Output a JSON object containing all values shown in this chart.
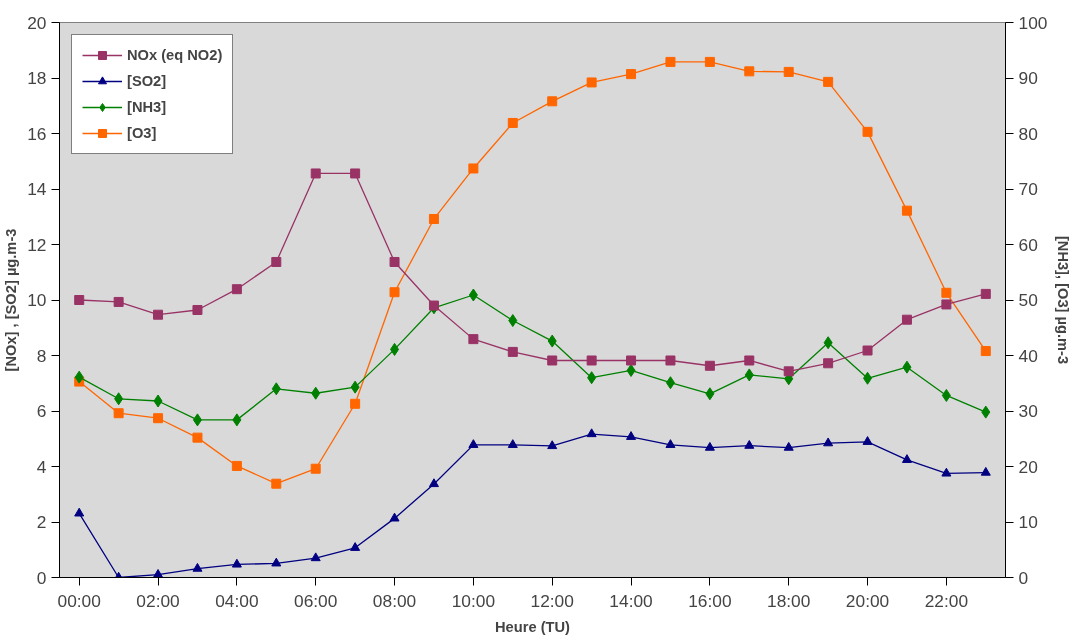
{
  "chart_data": {
    "type": "line",
    "xlabel": "Heure (TU)",
    "ylabel": "[NOx] , [SO2] µg.m-3",
    "y2label": "[NH3], [O3] µg.m-3",
    "x": [
      0,
      1,
      2,
      3,
      4,
      5,
      6,
      7,
      8,
      9,
      10,
      11,
      12,
      13,
      14,
      15,
      16,
      17,
      18,
      19,
      20,
      21,
      22,
      23
    ],
    "xlim": [
      -0.5,
      23.5
    ],
    "xticks": [
      {
        "value": 0,
        "label": "00:00"
      },
      {
        "value": 2,
        "label": "02:00"
      },
      {
        "value": 4,
        "label": "04:00"
      },
      {
        "value": 6,
        "label": "06:00"
      },
      {
        "value": 8,
        "label": "08:00"
      },
      {
        "value": 10,
        "label": "10:00"
      },
      {
        "value": 12,
        "label": "12:00"
      },
      {
        "value": 14,
        "label": "14:00"
      },
      {
        "value": 16,
        "label": "16:00"
      },
      {
        "value": 18,
        "label": "18:00"
      },
      {
        "value": 20,
        "label": "20:00"
      },
      {
        "value": 22,
        "label": "22:00"
      }
    ],
    "ylim": [
      0,
      20
    ],
    "yticks": [
      0,
      2,
      4,
      6,
      8,
      10,
      12,
      14,
      16,
      18,
      20
    ],
    "y2lim": [
      0,
      100
    ],
    "y2ticks": [
      0,
      10,
      20,
      30,
      40,
      50,
      60,
      70,
      80,
      90,
      100
    ],
    "grid": false,
    "legend": "top left",
    "series": [
      {
        "name": "NOx (eq NO2)",
        "color": "#993366",
        "marker": "square",
        "values": [
          10.0,
          9.93,
          9.47,
          9.64,
          10.39,
          11.37,
          14.56,
          14.56,
          11.37,
          9.8,
          8.59,
          8.13,
          7.82,
          7.82,
          7.82,
          7.82,
          7.63,
          7.82,
          7.43,
          7.72,
          8.18,
          9.29,
          9.84,
          10.22
        ]
      },
      {
        "name": "[SO2]",
        "color": "#000080",
        "marker": "triangle",
        "values": [
          2.31,
          0,
          0.1,
          0.32,
          0.47,
          0.51,
          0.7,
          1.07,
          2.13,
          3.37,
          4.78,
          4.78,
          4.74,
          5.17,
          5.07,
          4.78,
          4.68,
          4.75,
          4.68,
          4.84,
          4.89,
          4.24,
          3.75,
          3.78
        ]
      },
      {
        "name": "[NH3]",
        "color": "#008000",
        "marker": "diamond",
        "axis": "y2",
        "values": [
          36.1,
          32.2,
          31.8,
          28.4,
          28.4,
          34.0,
          33.2,
          34.3,
          41.1,
          48.6,
          50.9,
          46.3,
          42.6,
          36.0,
          37.3,
          35.1,
          33.1,
          36.5,
          35.8,
          42.3,
          35.9,
          37.9,
          32.8,
          29.8
        ]
      },
      {
        "name": "[O3]",
        "color": "#ff6600",
        "marker": "square",
        "axis": "y2",
        "values": [
          35.3,
          29.6,
          28.7,
          25.2,
          20.1,
          16.9,
          19.6,
          31.3,
          51.4,
          64.6,
          73.7,
          81.9,
          85.8,
          89.2,
          90.7,
          92.9,
          92.9,
          91.2,
          91.1,
          89.3,
          80.3,
          66.1,
          51.3,
          40.8
        ]
      }
    ]
  }
}
